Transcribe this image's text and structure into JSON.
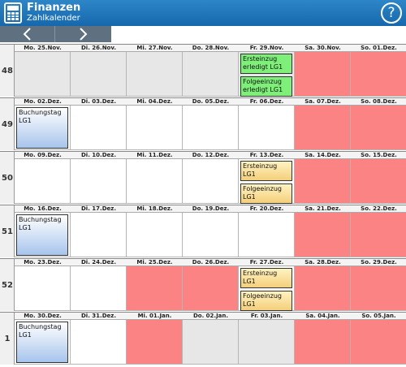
{
  "header": {
    "title": "Finanzen",
    "subtitle": "Zahlkalender",
    "help_label": "?"
  },
  "colors": {
    "header": "#1f78bf",
    "weekend": "#fb8383",
    "done_event": "#7ef07a",
    "pending_event": "#f4cf7a",
    "booking_event": "#a7c4ec"
  },
  "weeks": [
    {
      "number": "48",
      "days": [
        {
          "label": "Mo. 25.Nov.",
          "bg": "grey",
          "events": []
        },
        {
          "label": "Di. 26.Nov.",
          "bg": "grey",
          "events": []
        },
        {
          "label": "Mi. 27.Nov.",
          "bg": "grey",
          "events": []
        },
        {
          "label": "Do. 28.Nov.",
          "bg": "grey",
          "events": []
        },
        {
          "label": "Fr. 29.Nov.",
          "bg": "grey",
          "events": [
            {
              "text": "Ersteinzug erledigt LG1",
              "style": "green top"
            },
            {
              "text": "Folgeeinzug erledigt LG1",
              "style": "green bottom"
            }
          ]
        },
        {
          "label": "Sa. 30.Nov.",
          "bg": "red",
          "events": []
        },
        {
          "label": "So. 01.Dez.",
          "bg": "red",
          "events": []
        }
      ]
    },
    {
      "number": "49",
      "days": [
        {
          "label": "Mo. 02.Dez.",
          "bg": "white",
          "events": [
            {
              "text": "Buchungstag LG1",
              "style": "blue tall"
            }
          ]
        },
        {
          "label": "Di. 03.Dez.",
          "bg": "white",
          "events": []
        },
        {
          "label": "Mi. 04.Dez.",
          "bg": "white",
          "events": []
        },
        {
          "label": "Do. 05.Dez.",
          "bg": "white",
          "events": []
        },
        {
          "label": "Fr. 06.Dez.",
          "bg": "white",
          "events": []
        },
        {
          "label": "Sa. 07.Dez.",
          "bg": "red",
          "events": []
        },
        {
          "label": "So. 08.Dez.",
          "bg": "red",
          "events": []
        }
      ]
    },
    {
      "number": "50",
      "days": [
        {
          "label": "Mo. 09.Dez.",
          "bg": "white",
          "events": []
        },
        {
          "label": "Di. 10.Dez.",
          "bg": "white",
          "events": []
        },
        {
          "label": "Mi. 11.Dez.",
          "bg": "white",
          "events": []
        },
        {
          "label": "Do. 12.Dez.",
          "bg": "white",
          "events": []
        },
        {
          "label": "Fr. 13.Dez.",
          "bg": "white",
          "events": [
            {
              "text": "Ersteinzug LG1",
              "style": "yellow top"
            },
            {
              "text": "Folgeeinzug LG1",
              "style": "yellow bottom"
            }
          ]
        },
        {
          "label": "Sa. 14.Dez.",
          "bg": "red",
          "events": []
        },
        {
          "label": "So. 15.Dez.",
          "bg": "red",
          "events": []
        }
      ]
    },
    {
      "number": "51",
      "days": [
        {
          "label": "Mo. 16.Dez.",
          "bg": "white",
          "events": [
            {
              "text": "Buchungstag LG1",
              "style": "blue tall"
            }
          ]
        },
        {
          "label": "Di. 17.Dez.",
          "bg": "white",
          "events": []
        },
        {
          "label": "Mi. 18.Dez.",
          "bg": "white",
          "events": []
        },
        {
          "label": "Do. 19.Dez.",
          "bg": "white",
          "events": []
        },
        {
          "label": "Fr. 20.Dez.",
          "bg": "white",
          "events": []
        },
        {
          "label": "Sa. 21.Dez.",
          "bg": "red",
          "events": []
        },
        {
          "label": "So. 22.Dez.",
          "bg": "red",
          "events": []
        }
      ]
    },
    {
      "number": "52",
      "days": [
        {
          "label": "Mo. 23.Dez.",
          "bg": "white",
          "events": []
        },
        {
          "label": "Di. 24.Dez.",
          "bg": "white",
          "events": []
        },
        {
          "label": "Mi. 25.Dez.",
          "bg": "red",
          "events": []
        },
        {
          "label": "Do. 26.Dez.",
          "bg": "red",
          "events": []
        },
        {
          "label": "Fr. 27.Dez.",
          "bg": "white",
          "events": [
            {
              "text": "Ersteinzug LG1",
              "style": "yellow top"
            },
            {
              "text": "Folgeeinzug LG1",
              "style": "yellow bottom"
            }
          ]
        },
        {
          "label": "Sa. 28.Dez.",
          "bg": "red",
          "events": []
        },
        {
          "label": "So. 29.Dez.",
          "bg": "red",
          "events": []
        }
      ]
    },
    {
      "number": "1",
      "days": [
        {
          "label": "Mo. 30.Dez.",
          "bg": "white",
          "events": [
            {
              "text": "Buchungstag LG1",
              "style": "blue tall"
            }
          ]
        },
        {
          "label": "Di. 31.Dez.",
          "bg": "white",
          "events": []
        },
        {
          "label": "Mi. 01.Jan.",
          "bg": "red",
          "events": []
        },
        {
          "label": "Do. 02.Jan.",
          "bg": "grey",
          "events": []
        },
        {
          "label": "Fr. 03.Jan.",
          "bg": "grey",
          "events": []
        },
        {
          "label": "Sa. 04.Jan.",
          "bg": "red",
          "events": []
        },
        {
          "label": "So. 05.Jan.",
          "bg": "red",
          "events": []
        }
      ]
    }
  ]
}
